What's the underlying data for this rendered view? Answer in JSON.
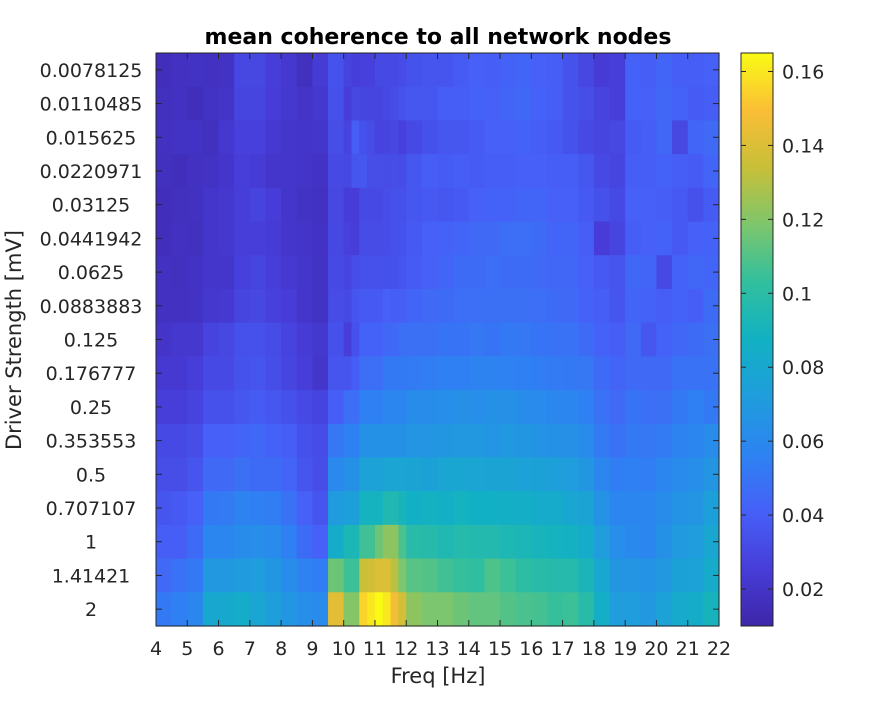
{
  "chart_data": {
    "type": "heatmap",
    "title": "mean coherence to all network nodes",
    "xlabel": "Freq [Hz]",
    "ylabel": "Driver Strength [mV]",
    "x_range": [
      4,
      22
    ],
    "x_ticks": [
      "4",
      "5",
      "6",
      "7",
      "8",
      "9",
      "10",
      "11",
      "12",
      "13",
      "14",
      "15",
      "16",
      "17",
      "18",
      "19",
      "20",
      "21",
      "22"
    ],
    "y_categories": [
      "0.0078125",
      "0.0110485",
      "0.015625",
      "0.0220971",
      "0.03125",
      "0.0441942",
      "0.0625",
      "0.0883883",
      "0.125",
      "0.176777",
      "0.25",
      "0.353553",
      "0.5",
      "0.707107",
      "1",
      "1.41421",
      "2"
    ],
    "colorbar": {
      "range": [
        0.01,
        0.165
      ],
      "ticks": [
        "0.02",
        "0.04",
        "0.06",
        "0.08",
        "0.1",
        "0.12",
        "0.14",
        "0.16"
      ],
      "colormap": "parula"
    },
    "x_edges": [
      4,
      4.5,
      5,
      5.5,
      6,
      6.5,
      7,
      7.5,
      8,
      8.5,
      9,
      9.5,
      10,
      10.25,
      10.5,
      10.75,
      11,
      11.25,
      11.5,
      11.75,
      12,
      12.5,
      13,
      13.5,
      14,
      14.5,
      15,
      15.5,
      16,
      16.5,
      17,
      17.5,
      18,
      18.5,
      19,
      19.5,
      20,
      20.5,
      21,
      21.5,
      22
    ],
    "values": [
      [
        0.016,
        0.018,
        0.019,
        0.018,
        0.019,
        0.03,
        0.03,
        0.026,
        0.022,
        0.017,
        0.024,
        0.035,
        0.028,
        0.026,
        0.027,
        0.027,
        0.031,
        0.031,
        0.031,
        0.032,
        0.035,
        0.036,
        0.036,
        0.039,
        0.041,
        0.04,
        0.042,
        0.043,
        0.041,
        0.04,
        0.035,
        0.03,
        0.024,
        0.026,
        0.042,
        0.04,
        0.043,
        0.04,
        0.04,
        0.041
      ],
      [
        0.017,
        0.018,
        0.016,
        0.019,
        0.02,
        0.029,
        0.029,
        0.025,
        0.022,
        0.02,
        0.022,
        0.034,
        0.026,
        0.03,
        0.029,
        0.029,
        0.029,
        0.031,
        0.032,
        0.035,
        0.037,
        0.037,
        0.04,
        0.04,
        0.042,
        0.041,
        0.043,
        0.044,
        0.042,
        0.04,
        0.035,
        0.033,
        0.028,
        0.026,
        0.042,
        0.041,
        0.044,
        0.042,
        0.039,
        0.04
      ],
      [
        0.018,
        0.019,
        0.019,
        0.017,
        0.022,
        0.027,
        0.027,
        0.023,
        0.021,
        0.02,
        0.021,
        0.033,
        0.028,
        0.04,
        0.034,
        0.032,
        0.028,
        0.029,
        0.03,
        0.027,
        0.031,
        0.034,
        0.037,
        0.037,
        0.039,
        0.041,
        0.041,
        0.042,
        0.04,
        0.038,
        0.035,
        0.031,
        0.029,
        0.03,
        0.039,
        0.04,
        0.044,
        0.03,
        0.043,
        0.045
      ],
      [
        0.017,
        0.016,
        0.018,
        0.019,
        0.021,
        0.026,
        0.024,
        0.021,
        0.021,
        0.02,
        0.019,
        0.031,
        0.03,
        0.036,
        0.037,
        0.033,
        0.033,
        0.032,
        0.033,
        0.032,
        0.037,
        0.04,
        0.039,
        0.04,
        0.039,
        0.04,
        0.04,
        0.041,
        0.041,
        0.04,
        0.04,
        0.037,
        0.031,
        0.029,
        0.04,
        0.04,
        0.042,
        0.04,
        0.039,
        0.043
      ],
      [
        0.016,
        0.017,
        0.018,
        0.021,
        0.022,
        0.026,
        0.028,
        0.025,
        0.021,
        0.019,
        0.018,
        0.03,
        0.025,
        0.025,
        0.031,
        0.031,
        0.031,
        0.033,
        0.034,
        0.034,
        0.037,
        0.038,
        0.037,
        0.038,
        0.041,
        0.042,
        0.042,
        0.043,
        0.043,
        0.041,
        0.041,
        0.038,
        0.034,
        0.031,
        0.041,
        0.041,
        0.04,
        0.038,
        0.034,
        0.039
      ],
      [
        0.016,
        0.018,
        0.017,
        0.021,
        0.022,
        0.026,
        0.026,
        0.024,
        0.021,
        0.02,
        0.019,
        0.03,
        0.027,
        0.026,
        0.032,
        0.032,
        0.032,
        0.033,
        0.034,
        0.035,
        0.038,
        0.041,
        0.042,
        0.043,
        0.045,
        0.045,
        0.047,
        0.047,
        0.046,
        0.043,
        0.043,
        0.04,
        0.025,
        0.029,
        0.04,
        0.041,
        0.042,
        0.038,
        0.041,
        0.042
      ],
      [
        0.018,
        0.017,
        0.019,
        0.021,
        0.021,
        0.027,
        0.029,
        0.026,
        0.023,
        0.021,
        0.019,
        0.031,
        0.029,
        0.033,
        0.034,
        0.034,
        0.034,
        0.034,
        0.035,
        0.036,
        0.039,
        0.041,
        0.043,
        0.046,
        0.046,
        0.047,
        0.046,
        0.046,
        0.045,
        0.044,
        0.044,
        0.041,
        0.038,
        0.036,
        0.044,
        0.043,
        0.031,
        0.042,
        0.044,
        0.043
      ],
      [
        0.018,
        0.018,
        0.019,
        0.022,
        0.023,
        0.029,
        0.03,
        0.027,
        0.025,
        0.021,
        0.019,
        0.032,
        0.031,
        0.036,
        0.038,
        0.038,
        0.038,
        0.041,
        0.04,
        0.04,
        0.043,
        0.045,
        0.046,
        0.047,
        0.047,
        0.048,
        0.048,
        0.048,
        0.047,
        0.046,
        0.045,
        0.042,
        0.04,
        0.036,
        0.043,
        0.042,
        0.04,
        0.042,
        0.04,
        0.046
      ],
      [
        0.02,
        0.022,
        0.022,
        0.028,
        0.03,
        0.034,
        0.034,
        0.032,
        0.028,
        0.024,
        0.022,
        0.034,
        0.026,
        0.034,
        0.042,
        0.042,
        0.042,
        0.044,
        0.045,
        0.047,
        0.048,
        0.048,
        0.05,
        0.05,
        0.051,
        0.05,
        0.052,
        0.051,
        0.05,
        0.049,
        0.049,
        0.046,
        0.042,
        0.04,
        0.045,
        0.037,
        0.042,
        0.044,
        0.046,
        0.048
      ],
      [
        0.023,
        0.023,
        0.026,
        0.031,
        0.031,
        0.035,
        0.036,
        0.033,
        0.029,
        0.026,
        0.021,
        0.036,
        0.036,
        0.04,
        0.047,
        0.047,
        0.047,
        0.052,
        0.052,
        0.052,
        0.053,
        0.054,
        0.055,
        0.055,
        0.057,
        0.057,
        0.056,
        0.055,
        0.054,
        0.053,
        0.052,
        0.051,
        0.046,
        0.043,
        0.045,
        0.045,
        0.045,
        0.049,
        0.049,
        0.049
      ],
      [
        0.026,
        0.026,
        0.028,
        0.034,
        0.034,
        0.037,
        0.039,
        0.037,
        0.034,
        0.031,
        0.028,
        0.04,
        0.047,
        0.047,
        0.055,
        0.055,
        0.055,
        0.058,
        0.058,
        0.058,
        0.062,
        0.062,
        0.063,
        0.064,
        0.063,
        0.065,
        0.064,
        0.062,
        0.061,
        0.059,
        0.058,
        0.055,
        0.049,
        0.045,
        0.05,
        0.047,
        0.048,
        0.052,
        0.055,
        0.052
      ],
      [
        0.031,
        0.031,
        0.033,
        0.041,
        0.041,
        0.043,
        0.044,
        0.042,
        0.04,
        0.034,
        0.032,
        0.051,
        0.055,
        0.055,
        0.065,
        0.065,
        0.065,
        0.065,
        0.065,
        0.065,
        0.067,
        0.067,
        0.068,
        0.069,
        0.069,
        0.067,
        0.069,
        0.068,
        0.066,
        0.065,
        0.064,
        0.061,
        0.053,
        0.049,
        0.052,
        0.051,
        0.053,
        0.057,
        0.058,
        0.062
      ],
      [
        0.033,
        0.033,
        0.036,
        0.045,
        0.045,
        0.048,
        0.046,
        0.046,
        0.043,
        0.036,
        0.033,
        0.06,
        0.064,
        0.064,
        0.076,
        0.076,
        0.076,
        0.078,
        0.078,
        0.078,
        0.077,
        0.075,
        0.078,
        0.079,
        0.078,
        0.077,
        0.077,
        0.076,
        0.075,
        0.074,
        0.072,
        0.068,
        0.059,
        0.054,
        0.055,
        0.054,
        0.058,
        0.061,
        0.063,
        0.067
      ],
      [
        0.036,
        0.038,
        0.041,
        0.052,
        0.053,
        0.057,
        0.055,
        0.054,
        0.049,
        0.041,
        0.036,
        0.071,
        0.074,
        0.074,
        0.089,
        0.089,
        0.089,
        0.095,
        0.095,
        0.091,
        0.087,
        0.088,
        0.086,
        0.089,
        0.087,
        0.087,
        0.086,
        0.085,
        0.083,
        0.083,
        0.079,
        0.077,
        0.066,
        0.058,
        0.058,
        0.058,
        0.062,
        0.066,
        0.067,
        0.074
      ],
      [
        0.04,
        0.04,
        0.046,
        0.058,
        0.058,
        0.062,
        0.063,
        0.061,
        0.055,
        0.046,
        0.041,
        0.084,
        0.093,
        0.093,
        0.106,
        0.106,
        0.115,
        0.122,
        0.122,
        0.108,
        0.099,
        0.098,
        0.095,
        0.097,
        0.096,
        0.096,
        0.094,
        0.093,
        0.091,
        0.089,
        0.088,
        0.084,
        0.072,
        0.063,
        0.06,
        0.058,
        0.065,
        0.07,
        0.072,
        0.079
      ],
      [
        0.045,
        0.049,
        0.052,
        0.069,
        0.069,
        0.071,
        0.072,
        0.068,
        0.062,
        0.056,
        0.054,
        0.115,
        0.105,
        0.105,
        0.135,
        0.137,
        0.14,
        0.14,
        0.131,
        0.118,
        0.111,
        0.11,
        0.106,
        0.104,
        0.102,
        0.109,
        0.105,
        0.101,
        0.099,
        0.098,
        0.097,
        0.092,
        0.08,
        0.068,
        0.067,
        0.066,
        0.069,
        0.075,
        0.076,
        0.083
      ],
      [
        0.052,
        0.055,
        0.059,
        0.08,
        0.081,
        0.084,
        0.078,
        0.073,
        0.068,
        0.063,
        0.061,
        0.142,
        0.12,
        0.12,
        0.155,
        0.16,
        0.165,
        0.16,
        0.147,
        0.137,
        0.122,
        0.118,
        0.118,
        0.115,
        0.113,
        0.113,
        0.11,
        0.108,
        0.107,
        0.104,
        0.105,
        0.099,
        0.085,
        0.072,
        0.072,
        0.069,
        0.076,
        0.082,
        0.084,
        0.09
      ]
    ]
  }
}
